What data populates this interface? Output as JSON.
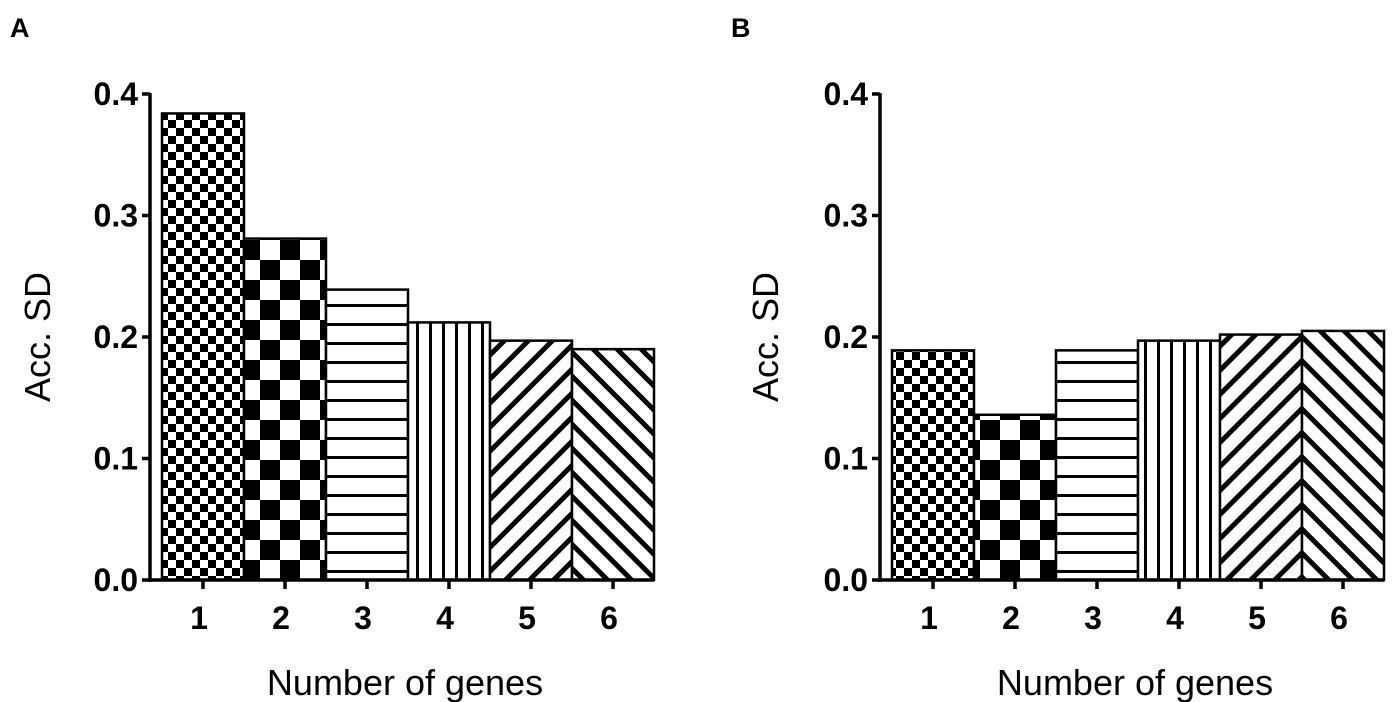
{
  "figure": {
    "panels": [
      {
        "letter": "A"
      },
      {
        "letter": "B"
      }
    ]
  },
  "chart_data": [
    {
      "type": "bar",
      "panel": "A",
      "categories": [
        "1",
        "2",
        "3",
        "4",
        "5",
        "6"
      ],
      "values": [
        0.384,
        0.281,
        0.239,
        0.212,
        0.197,
        0.19
      ],
      "patterns": [
        "fine-checker",
        "coarse-checker",
        "horizontal-stripes",
        "vertical-stripes",
        "diagonal-forward",
        "diagonal-back"
      ],
      "xlabel": "Number of genes",
      "ylabel": "Acc. SD",
      "ylim": [
        0,
        0.4
      ],
      "yticks": [
        "0.0",
        "0.1",
        "0.2",
        "0.3",
        "0.4"
      ],
      "grid": false
    },
    {
      "type": "bar",
      "panel": "B",
      "categories": [
        "1",
        "2",
        "3",
        "4",
        "5",
        "6"
      ],
      "values": [
        0.189,
        0.136,
        0.189,
        0.197,
        0.202,
        0.205
      ],
      "patterns": [
        "fine-checker",
        "coarse-checker",
        "horizontal-stripes",
        "vertical-stripes",
        "diagonal-forward",
        "diagonal-back"
      ],
      "xlabel": "Number of genes",
      "ylabel": "Acc. SD",
      "ylim": [
        0,
        0.4
      ],
      "yticks": [
        "0.0",
        "0.1",
        "0.2",
        "0.3",
        "0.4"
      ],
      "grid": false
    }
  ]
}
